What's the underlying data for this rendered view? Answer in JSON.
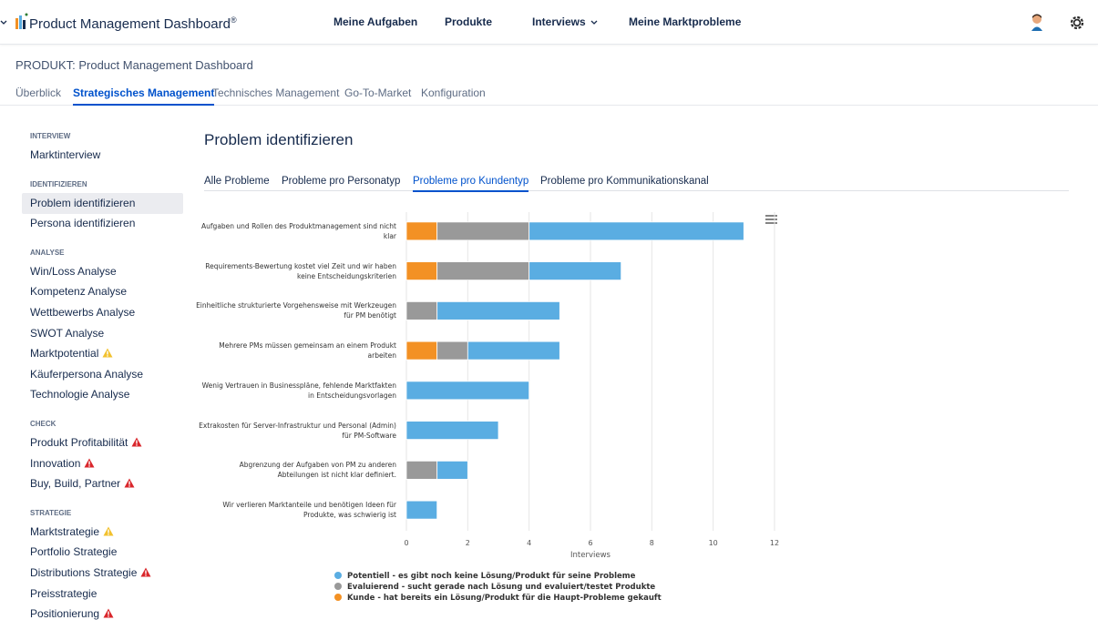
{
  "header": {
    "logo": "Product Management Dashboard",
    "logo_mark": "®",
    "nav": [
      "Meine Aufgaben",
      "Produkte",
      "Interviews",
      "Meine Marktprobleme"
    ]
  },
  "product_title": "PRODUKT: Product Management Dashboard",
  "tabs": [
    "Überblick",
    "Strategisches Management",
    "Technisches Management",
    "Go-To-Market",
    "Konfiguration"
  ],
  "active_tab": 1,
  "sidebar": [
    {
      "heading": "INTERVIEW",
      "items": [
        {
          "label": "Marktinterview"
        }
      ]
    },
    {
      "heading": "IDENTIFIZIEREN",
      "items": [
        {
          "label": "Problem identifizieren",
          "active": true
        },
        {
          "label": "Persona identifizieren"
        }
      ]
    },
    {
      "heading": "ANALYSE",
      "items": [
        {
          "label": "Win/Loss Analyse"
        },
        {
          "label": "Kompetenz Analyse"
        },
        {
          "label": "Wettbewerbs Analyse"
        },
        {
          "label": "SWOT Analyse"
        },
        {
          "label": "Marktpotential",
          "alert": "#f2c12e"
        },
        {
          "label": "Käuferpersona Analyse"
        },
        {
          "label": "Technologie Analyse"
        }
      ]
    },
    {
      "heading": "CHECK",
      "items": [
        {
          "label": "Produkt Profitabilität",
          "alert": "#d9262b"
        },
        {
          "label": "Innovation",
          "alert": "#d9262b"
        },
        {
          "label": "Buy, Build, Partner",
          "alert": "#d9262b"
        }
      ]
    },
    {
      "heading": "STRATEGIE",
      "items": [
        {
          "label": "Marktstrategie",
          "alert": "#f2c12e"
        },
        {
          "label": "Portfolio Strategie"
        },
        {
          "label": "Distributions Strategie",
          "alert": "#d9262b"
        },
        {
          "label": "Preisstrategie"
        },
        {
          "label": "Positionierung",
          "alert": "#d9262b"
        }
      ]
    }
  ],
  "page_title": "Problem identifizieren",
  "subtabs": [
    "Alle Probleme",
    "Probleme pro Personatyp",
    "Probleme pro Kundentyp",
    "Probleme pro Kommunikationskanal"
  ],
  "active_subtab": 2,
  "chart_data": {
    "type": "stacked-barh",
    "categories": [
      "Aufgaben und Rollen des Produktmanagement sind nicht klar",
      "Requirements-Bewertung kostet viel Zeit und wir haben keine Entscheidungskriterien",
      "Einheitliche strukturierte Vorgehensweise mit Werkzeugen für PM benötigt",
      "Mehrere PMs müssen gemeinsam an einem Produkt arbeiten",
      "Wenig Vertrauen in Businesspläne, fehlende Marktfakten in Entscheidungsvorlagen",
      "Extrakosten für Server-Infrastruktur und Personal (Admin) für PM-Software",
      "Abgrenzung der Aufgaben von PM zu anderen Abteilungen ist nicht klar definiert.",
      "Wir verlieren Marktanteile und benötigen Ideen für Produkte, was schwierig ist"
    ],
    "series": [
      {
        "name": "Potentiell - es gibt noch keine Lösung/Produkt für seine Probleme",
        "color": "#5aade2",
        "values": [
          7,
          3,
          4,
          3,
          4,
          3,
          1,
          1
        ]
      },
      {
        "name": "Evaluierend - sucht gerade nach Lösung und evaluiert/testet Produkte",
        "color": "#999999",
        "values": [
          3,
          3,
          1,
          1,
          0,
          0,
          1,
          0
        ]
      },
      {
        "name": "Kunde - hat bereits ein Lösung/Produkt für die Haupt-Probleme gekauft",
        "color": "#f39124",
        "values": [
          1,
          1,
          0,
          1,
          0,
          0,
          0,
          0
        ]
      }
    ],
    "x_label": "Interviews",
    "xlim": [
      0,
      12
    ],
    "xticks": [
      0,
      2,
      4,
      6,
      8,
      10,
      12
    ],
    "grid": true,
    "legend": "bottom"
  }
}
